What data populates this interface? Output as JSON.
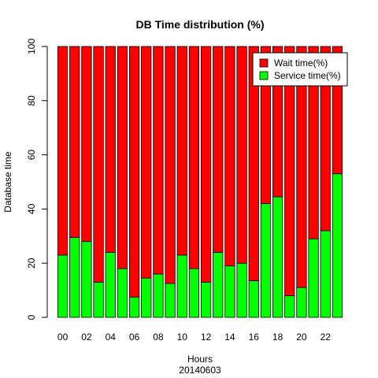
{
  "chart_data": {
    "type": "bar",
    "stacked": true,
    "title": "DB Time distribution (%)",
    "xlabel": "Hours",
    "xsublabel": "20140603",
    "ylabel": "Database time",
    "ylim": [
      0,
      100
    ],
    "yticks": [
      0,
      20,
      40,
      60,
      80,
      100
    ],
    "categories": [
      "00",
      "01",
      "02",
      "03",
      "04",
      "05",
      "06",
      "07",
      "08",
      "09",
      "10",
      "11",
      "12",
      "13",
      "14",
      "15",
      "16",
      "17",
      "18",
      "19",
      "20",
      "21",
      "22",
      "23"
    ],
    "xtick_labels_shown": [
      "00",
      "02",
      "04",
      "06",
      "08",
      "10",
      "12",
      "14",
      "16",
      "18",
      "20",
      "22"
    ],
    "series": [
      {
        "name": "Service time(%)",
        "color": "#00ff00",
        "values": [
          23,
          29.5,
          28,
          13,
          24,
          18,
          7.5,
          14.5,
          16,
          12.5,
          23,
          18,
          13,
          24,
          19,
          20,
          13.5,
          42,
          44.5,
          8,
          11,
          29,
          32,
          53
        ]
      },
      {
        "name": "Wait time(%)",
        "color": "#ff0000",
        "values": [
          77,
          70.5,
          72,
          87,
          76,
          82,
          92.5,
          85.5,
          84,
          87.5,
          77,
          82,
          87,
          76,
          81,
          80,
          86.5,
          58,
          55.5,
          92,
          89,
          71,
          68,
          47
        ]
      }
    ],
    "legend": {
      "placement": "top-right",
      "entries": [
        {
          "label": "Wait time(%)",
          "color": "#ff0000"
        },
        {
          "label": "Service time(%)",
          "color": "#00ff00"
        }
      ]
    },
    "grid": false
  }
}
